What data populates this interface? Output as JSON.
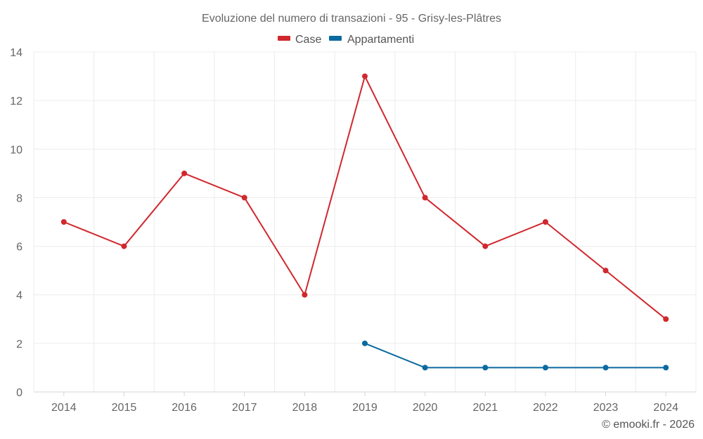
{
  "chart_data": {
    "type": "line",
    "title": "Evoluzione del numero di transazioni - 95 - Grisy-les-Plâtres",
    "categories": [
      "2014",
      "2015",
      "2016",
      "2017",
      "2018",
      "2019",
      "2020",
      "2021",
      "2022",
      "2023",
      "2024"
    ],
    "series": [
      {
        "name": "Case",
        "color": "#d0282e",
        "values": [
          7,
          6,
          9,
          8,
          4,
          13,
          8,
          6,
          7,
          5,
          3
        ]
      },
      {
        "name": "Appartamenti",
        "color": "#0a6aa1",
        "values": [
          null,
          null,
          null,
          null,
          null,
          2,
          1,
          1,
          1,
          1,
          1
        ]
      }
    ],
    "ylim": [
      0,
      14
    ],
    "yticks": [
      "0",
      "2",
      "4",
      "6",
      "8",
      "10",
      "12",
      "14"
    ],
    "grid": true,
    "legend_position": "top-center",
    "credit": "© emooki.fr - 2026"
  }
}
